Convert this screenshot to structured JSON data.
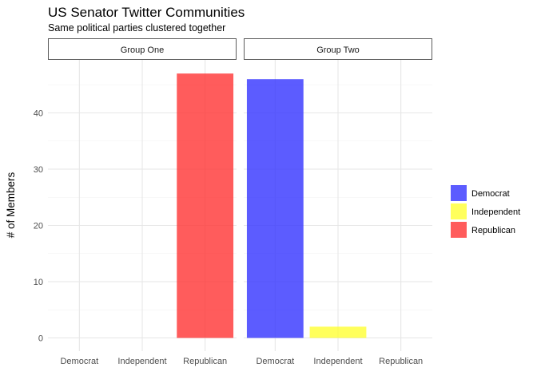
{
  "chart_data": {
    "type": "bar",
    "title": "US Senator Twitter Communities",
    "subtitle": "Same political parties clustered together",
    "xlabel": "",
    "ylabel": "# of Members",
    "ylim": [
      0,
      48
    ],
    "y_ticks": [
      0,
      10,
      20,
      30,
      40
    ],
    "categories": [
      "Democrat",
      "Independent",
      "Republican"
    ],
    "facets": [
      {
        "label": "Group One",
        "values": [
          0,
          0,
          47
        ]
      },
      {
        "label": "Group Two",
        "values": [
          46,
          2,
          0
        ]
      }
    ],
    "series_colors": {
      "Democrat": "#3333ff",
      "Independent": "#ffff33",
      "Republican": "#ff3333"
    },
    "legend": {
      "position": "right",
      "entries": [
        {
          "label": "Democrat",
          "color": "#3333ff"
        },
        {
          "label": "Independent",
          "color": "#ffff33"
        },
        {
          "label": "Republican",
          "color": "#ff3333"
        }
      ]
    },
    "grid": true
  }
}
